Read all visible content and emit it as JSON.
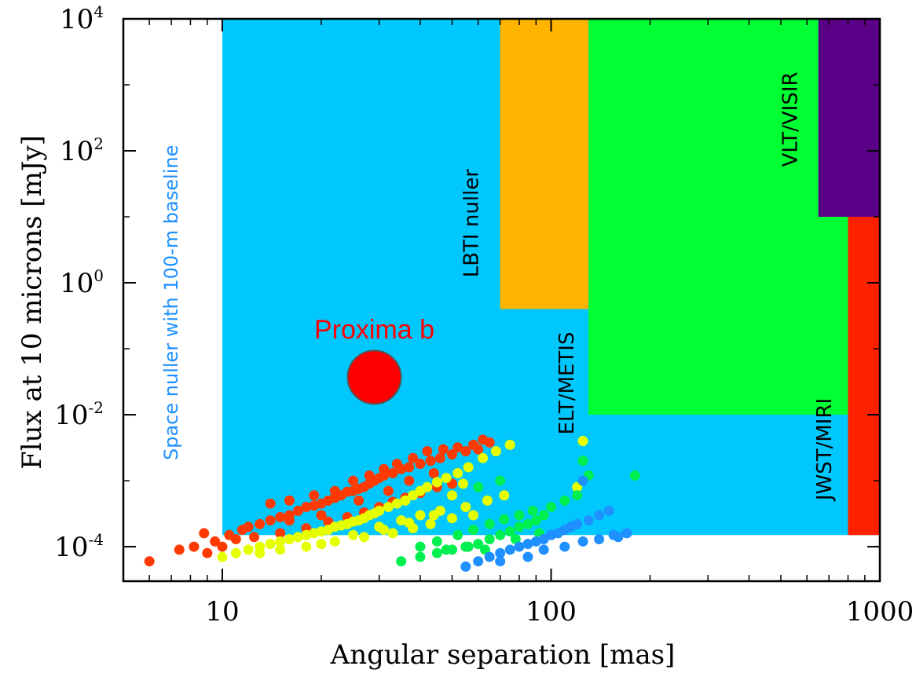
{
  "chart_data": {
    "type": "scatter",
    "title": "",
    "xlabel": "Angular separation [mas]",
    "ylabel": "Flux at 10 microns [mJy]",
    "xscale": "log",
    "yscale": "log",
    "xlim": [
      5,
      1000
    ],
    "ylim": [
      3e-05,
      10000
    ],
    "x_ticks": [
      {
        "value": 10,
        "label": "10"
      },
      {
        "value": 100,
        "label": "100"
      },
      {
        "value": 1000,
        "label": "1000"
      }
    ],
    "y_ticks": [
      {
        "value": 0.0001,
        "base": "10",
        "exp": "-4"
      },
      {
        "value": 0.01,
        "base": "10",
        "exp": "-2"
      },
      {
        "value": 1,
        "base": "10",
        "exp": "0"
      },
      {
        "value": 100,
        "base": "10",
        "exp": "2"
      },
      {
        "value": 10000,
        "base": "10",
        "exp": "4"
      }
    ],
    "regions": [
      {
        "name": "space-nuller",
        "label": "Space nuller with 100-m baseline",
        "color": "#00c8ff",
        "x": [
          10,
          1000
        ],
        "y": [
          0.00015,
          10000
        ],
        "label_color": "#1e90ff",
        "label_pos": {
          "x": 7.3,
          "y": 0.5
        }
      },
      {
        "name": "lbti-nuller",
        "label": "LBTI nuller",
        "color": "#ffb400",
        "x": [
          70,
          130
        ],
        "y": [
          0.4,
          10000
        ],
        "label_color": "#000000",
        "label_pos": {
          "x": 60,
          "y": 8
        }
      },
      {
        "name": "elt-metis",
        "label": "ELT/METIS",
        "color": "#00ff33",
        "x": [
          130,
          1000
        ],
        "y": [
          0.01,
          10000
        ],
        "label_color": "#000000",
        "label_pos": {
          "x": 117,
          "y": 0.03
        }
      },
      {
        "name": "vlt-visir",
        "label": "VLT/VISIR",
        "color": "#5a0087",
        "x": [
          650,
          1000
        ],
        "y": [
          10,
          10000
        ],
        "label_color": "#000000",
        "label_pos": {
          "x": 560,
          "y": 300
        }
      },
      {
        "name": "jwst-miri",
        "label": "JWST/MIRI",
        "color": "#ff2000",
        "x": [
          800,
          1000
        ],
        "y": [
          0.00015,
          10
        ],
        "label_color": "#000000",
        "label_pos": {
          "x": 710,
          "y": 0.003
        }
      }
    ],
    "highlight": {
      "label": "Proxima b",
      "x": 29,
      "y": 0.037,
      "color": "#ff0000",
      "label_pos": {
        "x": 29,
        "y": 0.2
      }
    },
    "series": [
      {
        "name": "red",
        "color": "#ff3a00",
        "points": [
          [
            6,
            6e-05
          ],
          [
            7.4,
            9e-05
          ],
          [
            8.2,
            0.0001
          ],
          [
            8.8,
            0.00016
          ],
          [
            9.5,
            0.00012
          ],
          [
            10.5,
            0.00015
          ],
          [
            11.5,
            0.00018
          ],
          [
            12,
            0.0002
          ],
          [
            13,
            0.00022
          ],
          [
            14,
            0.00025
          ],
          [
            15,
            0.00028
          ],
          [
            16,
            0.0003
          ],
          [
            17,
            0.00035
          ],
          [
            18,
            0.0004
          ],
          [
            19,
            0.00042
          ],
          [
            20,
            0.00045
          ],
          [
            21,
            0.0005
          ],
          [
            22,
            0.00055
          ],
          [
            23,
            0.0006
          ],
          [
            24,
            0.00068
          ],
          [
            25,
            0.0007
          ],
          [
            26,
            0.00075
          ],
          [
            27,
            0.0008
          ],
          [
            28,
            0.0009
          ],
          [
            29,
            0.001
          ],
          [
            30,
            0.0011
          ],
          [
            31,
            0.0012
          ],
          [
            33,
            0.0013
          ],
          [
            35,
            0.0015
          ],
          [
            37,
            0.0016
          ],
          [
            40,
            0.0018
          ],
          [
            43,
            0.002
          ],
          [
            46,
            0.0022
          ],
          [
            50,
            0.0025
          ],
          [
            55,
            0.0028
          ],
          [
            58,
            0.0035
          ],
          [
            60,
            0.003
          ],
          [
            62,
            0.0042
          ],
          [
            65,
            0.0038
          ],
          [
            14,
            0.00045
          ],
          [
            16,
            0.0005
          ],
          [
            19,
            0.0006
          ],
          [
            22,
            0.0007
          ],
          [
            25,
            0.001
          ],
          [
            28,
            0.0012
          ],
          [
            31,
            0.0015
          ],
          [
            34,
            0.0018
          ],
          [
            38,
            0.0022
          ],
          [
            42,
            0.0028
          ],
          [
            47,
            0.003
          ],
          [
            52,
            0.0032
          ],
          [
            11,
            0.00013
          ],
          [
            12.5,
            0.00014
          ],
          [
            15,
            0.00016
          ],
          [
            18,
            0.00019
          ],
          [
            21,
            0.00024
          ],
          [
            24,
            0.00028
          ],
          [
            27,
            0.00033
          ],
          [
            30,
            0.0004
          ],
          [
            33,
            0.00048
          ],
          [
            36,
            0.00055
          ],
          [
            40,
            0.00065
          ],
          [
            45,
            0.0008
          ],
          [
            50,
            0.0009
          ],
          [
            9,
            8e-05
          ],
          [
            10,
            0.0001
          ],
          [
            16,
            0.00025
          ],
          [
            20,
            0.0003
          ],
          [
            26,
            0.0005
          ],
          [
            32,
            0.0007
          ],
          [
            37,
            0.001
          ],
          [
            44,
            0.0013
          ]
        ]
      },
      {
        "name": "yellow",
        "color": "#e6ff00",
        "points": [
          [
            10,
            7e-05
          ],
          [
            11,
            8e-05
          ],
          [
            12,
            9e-05
          ],
          [
            13,
            0.0001
          ],
          [
            14,
            0.00011
          ],
          [
            15,
            0.00012
          ],
          [
            16,
            0.00013
          ],
          [
            17,
            0.00014
          ],
          [
            18,
            0.00015
          ],
          [
            19,
            0.00016
          ],
          [
            20,
            0.00017
          ],
          [
            21,
            0.00018
          ],
          [
            22,
            0.0002
          ],
          [
            23,
            0.00021
          ],
          [
            24,
            0.00022
          ],
          [
            25,
            0.00024
          ],
          [
            26,
            0.00025
          ],
          [
            27,
            0.00027
          ],
          [
            28,
            0.0003
          ],
          [
            29,
            0.00032
          ],
          [
            30,
            0.00035
          ],
          [
            32,
            0.0004
          ],
          [
            34,
            0.00045
          ],
          [
            36,
            0.0005
          ],
          [
            38,
            0.0006
          ],
          [
            40,
            0.0007
          ],
          [
            42,
            0.0008
          ],
          [
            45,
            0.00095
          ],
          [
            48,
            0.0011
          ],
          [
            52,
            0.0013
          ],
          [
            56,
            0.0016
          ],
          [
            62,
            0.0022
          ],
          [
            68,
            0.0028
          ],
          [
            75,
            0.0035
          ],
          [
            30,
            0.0002
          ],
          [
            35,
            0.00025
          ],
          [
            40,
            0.0003
          ],
          [
            46,
            0.00035
          ],
          [
            55,
            0.0004
          ],
          [
            64,
            0.0005
          ],
          [
            72,
            0.0006
          ],
          [
            125,
            0.004
          ],
          [
            120,
            0.0008
          ],
          [
            13,
            8e-05
          ],
          [
            18,
            0.0001
          ],
          [
            22,
            0.00012
          ],
          [
            27,
            0.00014
          ],
          [
            33,
            0.00016
          ],
          [
            38,
            0.00019
          ],
          [
            43,
            0.00022
          ],
          [
            50,
            0.00027
          ],
          [
            58,
            0.0003
          ],
          [
            15,
            9e-05
          ],
          [
            20,
            0.00011
          ],
          [
            25,
            0.00015
          ],
          [
            31,
            0.00018
          ],
          [
            37,
            0.00023
          ],
          [
            44,
            0.0003
          ],
          [
            50,
            0.0006
          ],
          [
            54,
            0.0009
          ]
        ]
      },
      {
        "name": "green",
        "color": "#00f050",
        "points": [
          [
            35,
            6e-05
          ],
          [
            40,
            7e-05
          ],
          [
            45,
            8e-05
          ],
          [
            50,
            9e-05
          ],
          [
            55,
            0.0001
          ],
          [
            60,
            0.00011
          ],
          [
            65,
            0.00013
          ],
          [
            70,
            0.00015
          ],
          [
            75,
            0.00017
          ],
          [
            80,
            0.0002
          ],
          [
            85,
            0.00022
          ],
          [
            90,
            0.00025
          ],
          [
            95,
            0.0003
          ],
          [
            100,
            0.0004
          ],
          [
            110,
            0.0005
          ],
          [
            120,
            0.0006
          ],
          [
            125,
            0.002
          ],
          [
            130,
            0.0012
          ],
          [
            180,
            0.0012
          ],
          [
            45,
            0.00012
          ],
          [
            52,
            0.00015
          ],
          [
            58,
            0.00018
          ],
          [
            65,
            0.00022
          ],
          [
            72,
            0.00026
          ],
          [
            80,
            0.0003
          ],
          [
            88,
            0.00035
          ],
          [
            60,
            0.0008
          ],
          [
            70,
            0.001
          ],
          [
            40,
            0.0001
          ],
          [
            48,
            9e-05
          ],
          [
            56,
            0.0001
          ],
          [
            63,
            9e-05
          ],
          [
            78,
            0.00013
          ],
          [
            92,
            0.00016
          ]
        ]
      },
      {
        "name": "blue",
        "color": "#1e90ff",
        "points": [
          [
            55,
            5e-05
          ],
          [
            60,
            6e-05
          ],
          [
            65,
            7e-05
          ],
          [
            70,
            8e-05
          ],
          [
            75,
            9e-05
          ],
          [
            80,
            0.0001
          ],
          [
            85,
            0.00011
          ],
          [
            90,
            0.00012
          ],
          [
            95,
            0.00013
          ],
          [
            100,
            0.00015
          ],
          [
            105,
            0.00016
          ],
          [
            110,
            0.00018
          ],
          [
            115,
            0.0002
          ],
          [
            120,
            0.00022
          ],
          [
            130,
            0.00025
          ],
          [
            140,
            0.0003
          ],
          [
            150,
            0.00035
          ],
          [
            160,
            0.00014
          ],
          [
            170,
            0.00016
          ],
          [
            125,
            0.001
          ],
          [
            70,
            6e-05
          ],
          [
            85,
            7e-05
          ],
          [
            95,
            9e-05
          ],
          [
            110,
            0.0001
          ],
          [
            125,
            0.00012
          ],
          [
            140,
            0.00013
          ],
          [
            155,
            0.00015
          ]
        ]
      }
    ]
  }
}
